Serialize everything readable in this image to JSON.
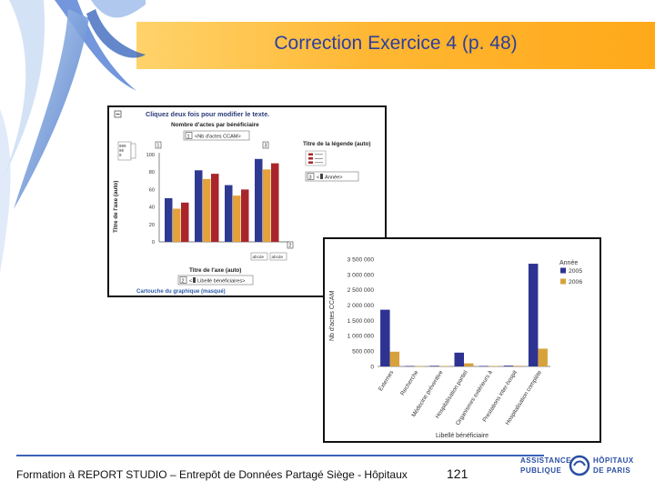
{
  "slide": {
    "title": "Correction Exercice 4 (p. 48)",
    "footer": "Formation à REPORT STUDIO – Entrepôt de Données Partagé Siège - Hôpitaux",
    "page_number": "121",
    "logo_left_line1": "ASSISTANCE",
    "logo_left_line2": "PUBLIQUE",
    "logo_right_line1": "HÔPITAUX",
    "logo_right_line2": "DE PARIS"
  },
  "designer": {
    "hint": "Cliquez deux fois pour modifier le texte.",
    "chart_title": "Nombre d'actes par bénéficiaire",
    "measure_chip": "<Nb d'actes CCAM>",
    "measure_chip_num": "1",
    "y_axis_title": "Titre de l'axe (auto)",
    "x_axis_title": "Titre de l'axe (auto)",
    "legend_title": "Titre de la légende (auto)",
    "legend_chip": "<",
    "legend_chip_value": "Année>",
    "legend_chip_num": "3",
    "category_chip": "<",
    "category_chip_value": "Libellé bénéficiaires>",
    "category_chip_num": "2",
    "footnote": "Cartouche du graphique (masqué)",
    "y_ticks": [
      "0",
      "20",
      "40",
      "60",
      "80",
      "100"
    ],
    "marker_1": "1",
    "marker_2": "2",
    "marker_3": "3",
    "abcde": "abcde",
    "colors": {
      "blue": "#2e3a92",
      "orange": "#e5a23a",
      "red": "#a8262b",
      "header": "#2a3a78"
    }
  },
  "chart_data": {
    "type": "bar",
    "title": "",
    "xlabel": "Libellé bénéficiaire",
    "ylabel": "Nb d'actes CCAM",
    "legend_title": "Année",
    "legend_position": "right",
    "ylim": [
      0,
      3500000
    ],
    "y_ticks": [
      "0",
      "500 000",
      "1 000 000",
      "1 500 000",
      "2 000 000",
      "2 500 000",
      "3 000 000",
      "3 500 000"
    ],
    "categories": [
      "Externes",
      "Recherche",
      "Médecine préventive",
      "Hospitalisation partiel",
      "Organismes extérieurs à",
      "Prestations inter-hospit",
      "Hospitalisation complète"
    ],
    "series": [
      {
        "name": "2005",
        "color": "#2e3392",
        "values": [
          1850000,
          15000,
          20000,
          450000,
          15000,
          25000,
          3350000
        ]
      },
      {
        "name": "2006",
        "color": "#d7a23c",
        "values": [
          480000,
          10000,
          15000,
          100000,
          10000,
          20000,
          580000
        ]
      }
    ]
  }
}
